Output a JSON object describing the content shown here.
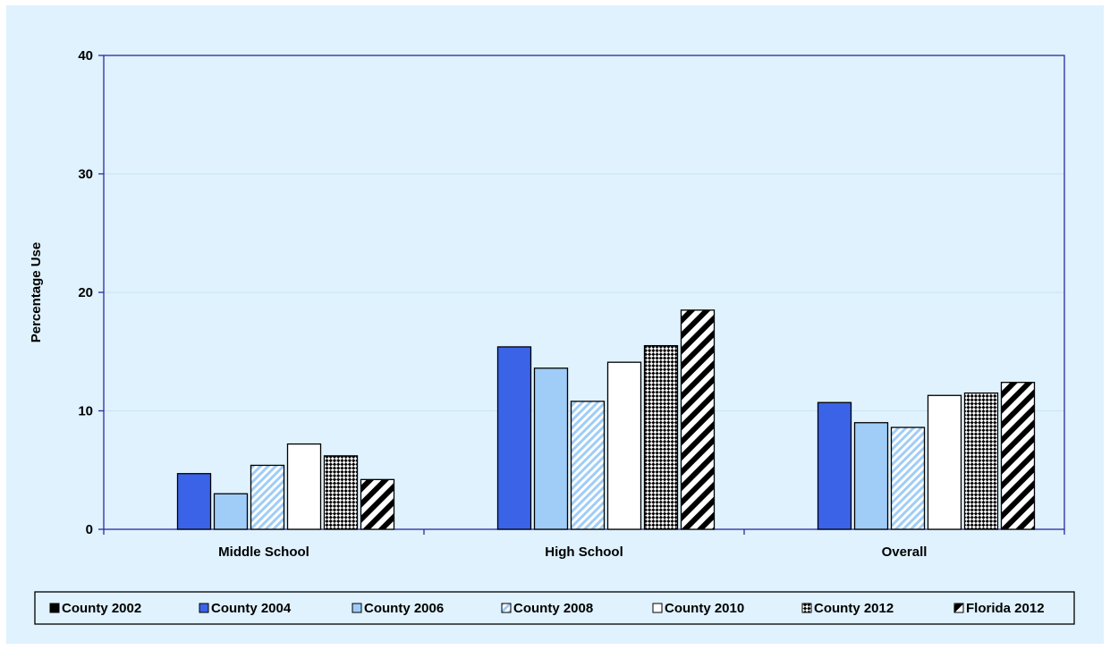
{
  "chart_data": {
    "type": "bar",
    "title": "",
    "xlabel": "",
    "ylabel": "Percentage Use",
    "ylim": [
      0,
      40
    ],
    "yticks": [
      0,
      10,
      20,
      30,
      40
    ],
    "grid": true,
    "legend_position": "bottom",
    "categories": [
      "Middle School",
      "High School",
      "Overall"
    ],
    "series": [
      {
        "name": "County 2002",
        "values": [
          null,
          null,
          null
        ],
        "color": "#000000",
        "pattern": "solid"
      },
      {
        "name": "County 2004",
        "values": [
          4.7,
          15.4,
          10.7
        ],
        "color": "#3b63e8",
        "pattern": "solid"
      },
      {
        "name": "County 2006",
        "values": [
          3.0,
          13.6,
          9.0
        ],
        "color": "#9fcdf7",
        "pattern": "solid"
      },
      {
        "name": "County 2008",
        "values": [
          5.4,
          10.8,
          8.6
        ],
        "color": "#9fcdf7",
        "pattern": "diagonal-light"
      },
      {
        "name": "County 2010",
        "values": [
          7.2,
          14.1,
          11.3
        ],
        "color": "#ffffff",
        "pattern": "solid"
      },
      {
        "name": "County 2012",
        "values": [
          6.2,
          15.5,
          11.5
        ],
        "color": "#000000",
        "pattern": "checker"
      },
      {
        "name": "Florida 2012",
        "values": [
          4.2,
          18.5,
          12.4
        ],
        "color": "#000000",
        "pattern": "wide-diagonal"
      }
    ]
  }
}
